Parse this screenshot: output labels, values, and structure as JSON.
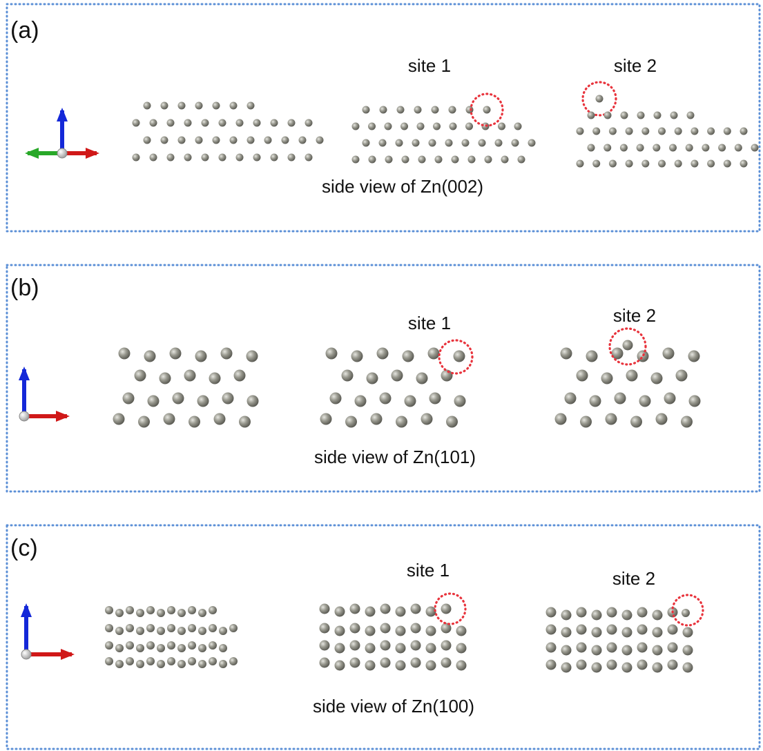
{
  "panels": [
    {
      "label": "(a)",
      "site1": "site 1",
      "site2": "site 2",
      "caption": "side view of Zn(002)"
    },
    {
      "label": "(b)",
      "site1": "site 1",
      "site2": "site 2",
      "caption": "side view of Zn(101)"
    },
    {
      "label": "(c)",
      "site1": "site 1",
      "site2": "site 2",
      "caption": "side view of Zn(100)"
    }
  ]
}
